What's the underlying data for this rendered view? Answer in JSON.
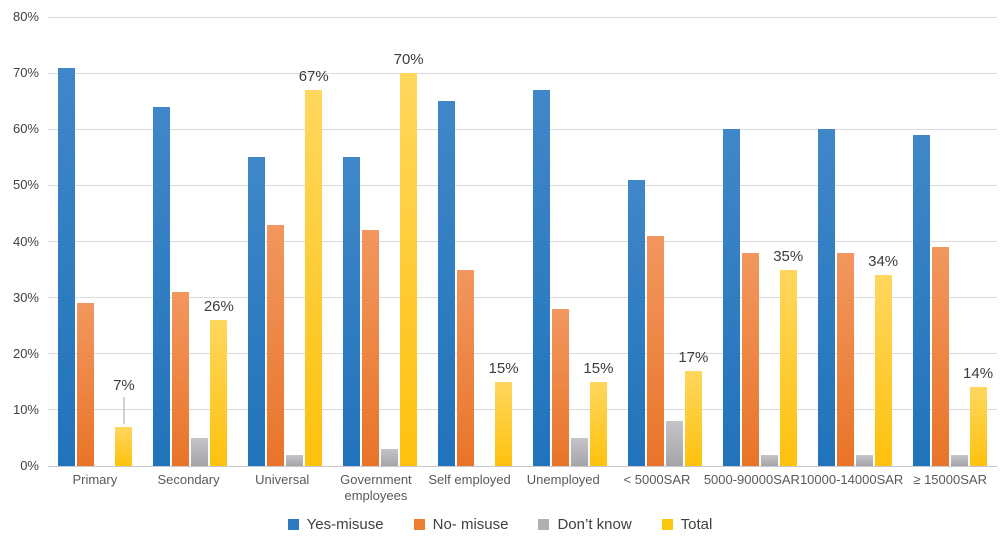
{
  "chart_data": {
    "type": "bar",
    "title": "",
    "xlabel": "",
    "ylabel": "",
    "categories": [
      "Primary",
      "Secondary",
      "Universal",
      "Government employees",
      "Self employed",
      "Unemployed",
      "< 5000SAR",
      "5000-90000SAR",
      "10000-14000SAR",
      "≥ 15000SAR"
    ],
    "series": [
      {
        "name": "Yes-misuse",
        "color": "#2E7AC0",
        "gradient_top": "#3F87C8",
        "gradient_bottom": "#2173BB",
        "values": [
          71,
          64,
          55,
          55,
          65,
          67,
          51,
          60,
          60,
          59
        ]
      },
      {
        "name": "No- misuse",
        "color": "#ED7D31",
        "gradient_top": "#F2975F",
        "gradient_bottom": "#E97428",
        "values": [
          29,
          31,
          43,
          42,
          35,
          28,
          41,
          38,
          38,
          39
        ]
      },
      {
        "name": "Don’t know",
        "color": "#AFAFB4",
        "gradient_top": "#C4C4C9",
        "gradient_bottom": "#A4A4A9",
        "values": [
          0,
          5,
          2,
          3,
          0,
          5,
          8,
          2,
          2,
          2
        ]
      },
      {
        "name": "Total",
        "color": "#FEC60F",
        "gradient_top": "#FFD75E",
        "gradient_bottom": "#FEC10D",
        "values": [
          7,
          26,
          67,
          70,
          15,
          15,
          17,
          35,
          34,
          14
        ]
      }
    ],
    "data_labels": {
      "series_name": "Total",
      "texts": [
        "7%",
        "26%",
        "67%",
        "70%",
        "15%",
        "15%",
        "17%",
        "35%",
        "34%",
        "14%"
      ],
      "leader_line_category": "Primary"
    },
    "ylim": [
      0,
      80
    ],
    "ytick_labels": [
      "0%",
      "10%",
      "20%",
      "30%",
      "40%",
      "50%",
      "60%",
      "70%",
      "80%"
    ],
    "grid": true,
    "legend_position": "bottom"
  }
}
